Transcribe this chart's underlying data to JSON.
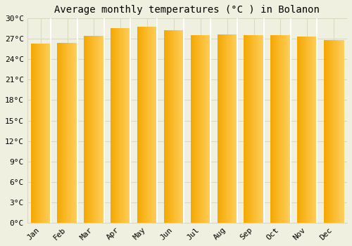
{
  "title": "Average monthly temperatures (°C ) in Bolanon",
  "months": [
    "Jan",
    "Feb",
    "Mar",
    "Apr",
    "May",
    "Jun",
    "Jul",
    "Aug",
    "Sep",
    "Oct",
    "Nov",
    "Dec"
  ],
  "temperatures": [
    26.3,
    26.4,
    27.4,
    28.5,
    28.8,
    28.2,
    27.5,
    27.6,
    27.5,
    27.5,
    27.3,
    26.8
  ],
  "bar_color_left": "#F5A800",
  "bar_color_right": "#FFD060",
  "ylim": [
    0,
    30
  ],
  "yticks": [
    0,
    3,
    6,
    9,
    12,
    15,
    18,
    21,
    24,
    27,
    30
  ],
  "ytick_labels": [
    "0°C",
    "3°C",
    "6°C",
    "9°C",
    "12°C",
    "15°C",
    "18°C",
    "21°C",
    "24°C",
    "27°C",
    "30°C"
  ],
  "background_color": "#f0f0e0",
  "grid_color": "#d8d8c0",
  "title_fontsize": 10,
  "tick_fontsize": 8,
  "bar_width": 0.75
}
